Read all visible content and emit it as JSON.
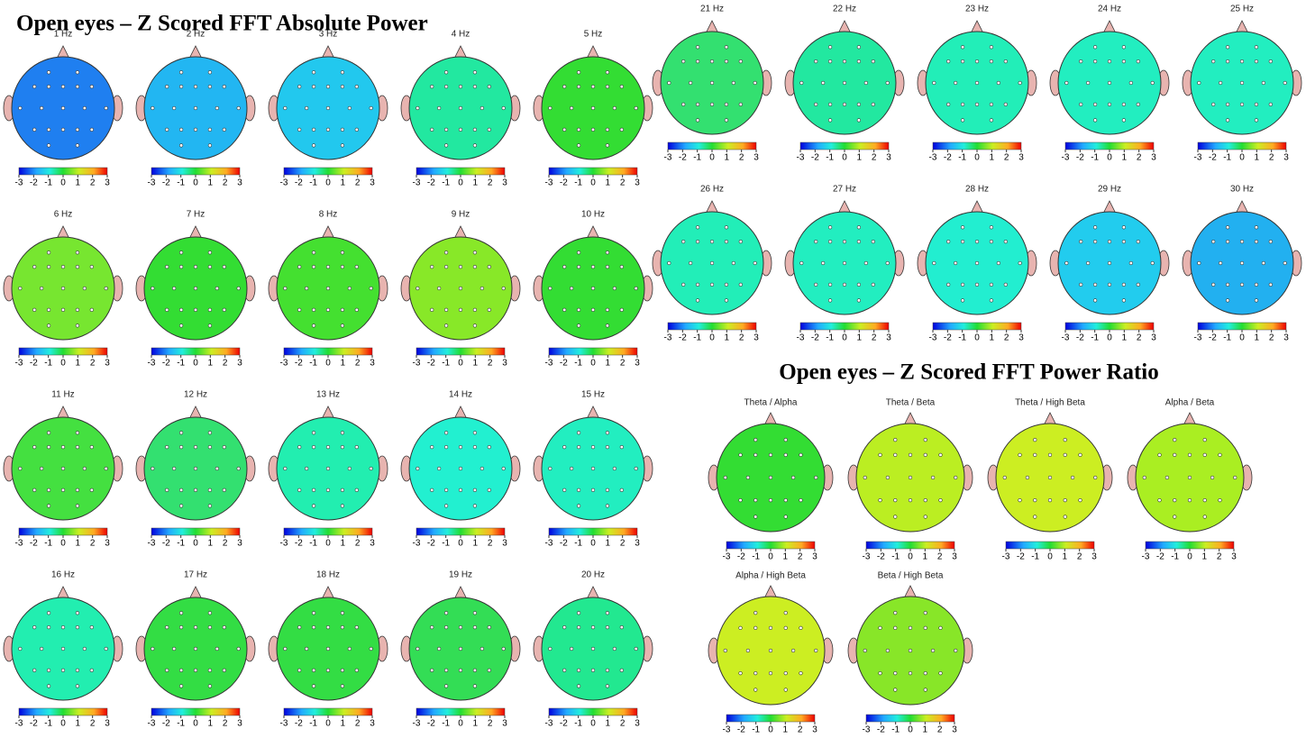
{
  "sections": [
    {
      "title": "Open eyes – Z Scored FFT Absolute Power",
      "maps": [
        {
          "label": "1 Hz",
          "color": "#1f7ff0"
        },
        {
          "label": "2 Hz",
          "color": "#22b6f2"
        },
        {
          "label": "3 Hz",
          "color": "#22c8ee"
        },
        {
          "label": "4 Hz",
          "color": "#22e8a0"
        },
        {
          "label": "5 Hz",
          "color": "#33dd33"
        },
        {
          "label": "6 Hz",
          "color": "#77e630"
        },
        {
          "label": "7 Hz",
          "color": "#33dd33"
        },
        {
          "label": "8 Hz",
          "color": "#44e030"
        },
        {
          "label": "9 Hz",
          "color": "#88e828"
        },
        {
          "label": "10 Hz",
          "color": "#33dd33"
        },
        {
          "label": "11 Hz",
          "color": "#44e040"
        },
        {
          "label": "12 Hz",
          "color": "#33e070"
        },
        {
          "label": "13 Hz",
          "color": "#22eeb0"
        },
        {
          "label": "14 Hz",
          "color": "#22f0d0"
        },
        {
          "label": "15 Hz",
          "color": "#22eec0"
        },
        {
          "label": "16 Hz",
          "color": "#22eeb0"
        },
        {
          "label": "17 Hz",
          "color": "#33dd44"
        },
        {
          "label": "18 Hz",
          "color": "#33dd44"
        },
        {
          "label": "19 Hz",
          "color": "#33dd55"
        },
        {
          "label": "20 Hz",
          "color": "#22e890"
        },
        {
          "label": "21 Hz",
          "color": "#33e070"
        },
        {
          "label": "22 Hz",
          "color": "#22e8a0"
        },
        {
          "label": "23 Hz",
          "color": "#22eeb8"
        },
        {
          "label": "24 Hz",
          "color": "#22eec0"
        },
        {
          "label": "25 Hz",
          "color": "#22eec0"
        },
        {
          "label": "26 Hz",
          "color": "#22eeb8"
        },
        {
          "label": "27 Hz",
          "color": "#22eec0"
        },
        {
          "label": "28 Hz",
          "color": "#22eed0"
        },
        {
          "label": "29 Hz",
          "color": "#22ccee"
        },
        {
          "label": "30 Hz",
          "color": "#22b0f0"
        }
      ]
    },
    {
      "title": "Open eyes – Z Scored FFT Power Ratio",
      "maps": [
        {
          "label": "Theta / Alpha",
          "color": "#33dd33"
        },
        {
          "label": "Theta / Beta",
          "color": "#bbee22"
        },
        {
          "label": "Theta / High Beta",
          "color": "#ccee22"
        },
        {
          "label": "Alpha / Beta",
          "color": "#aaee22"
        },
        {
          "label": "Alpha / High Beta",
          "color": "#ccee22"
        },
        {
          "label": "Beta / High Beta",
          "color": "#88e628"
        }
      ]
    }
  ],
  "colorbar_ticks": [
    -3,
    -2,
    -1,
    0,
    1,
    2,
    3
  ]
}
